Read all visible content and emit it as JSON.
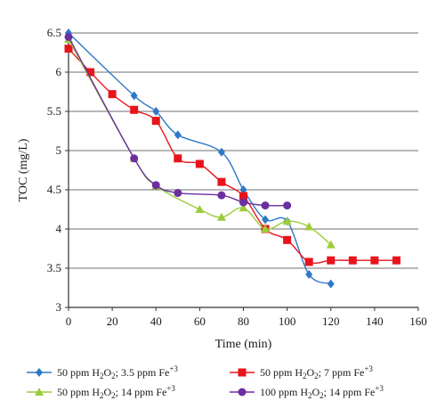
{
  "chart_data": {
    "type": "line",
    "xlabel": "Time (min)",
    "ylabel": "TOC (mg/L)",
    "xlim": [
      0,
      160
    ],
    "ylim": [
      3,
      6.5
    ],
    "x_ticks": [
      "0",
      "20",
      "40",
      "60",
      "80",
      "100",
      "120",
      "140",
      "160"
    ],
    "y_ticks": [
      "3",
      "3.5",
      "4",
      "4.5",
      "5",
      "5.5",
      "6",
      "6.5"
    ],
    "grid": "horizontal",
    "legend_position": "bottom",
    "series": [
      {
        "name": "50 ppm H2O2; 3.5 ppm Fe+3",
        "label_parts": {
          "pre": "50 ppm H",
          "s1": "2",
          "mid": "O",
          "s2": "2",
          "post": "; 3.5 ppm Fe",
          "sup": "+3"
        },
        "color": "#2e78c7",
        "marker": "diamond",
        "x": [
          0,
          30,
          40,
          50,
          70,
          80,
          90,
          100,
          110,
          120
        ],
        "y": [
          6.5,
          5.7,
          5.5,
          5.2,
          4.98,
          4.5,
          4.12,
          4.1,
          3.42,
          3.3
        ]
      },
      {
        "name": "50 ppm H2O2; 7 ppm Fe+3",
        "label_parts": {
          "pre": "50 ppm H",
          "s1": "2",
          "mid": "O",
          "s2": "2",
          "post": "; 7 ppm Fe",
          "sup": "+3"
        },
        "color": "#e8141b",
        "marker": "square",
        "x": [
          0,
          10,
          20,
          30,
          40,
          50,
          60,
          70,
          80,
          90,
          100,
          110,
          120,
          130,
          140,
          150
        ],
        "y": [
          6.3,
          6.0,
          5.72,
          5.52,
          5.38,
          4.9,
          4.83,
          4.6,
          4.42,
          4.0,
          3.86,
          3.58,
          3.6,
          3.6,
          3.6,
          3.6
        ]
      },
      {
        "name": "50 ppm H2O2; 14 ppm Fe+3",
        "label_parts": {
          "pre": "50 ppm H",
          "s1": "2",
          "mid": "O",
          "s2": "2",
          "post": "; 14 ppm Fe",
          "sup": "+3"
        },
        "color": "#9ccc3a",
        "marker": "triangle",
        "x": [
          0,
          30,
          40,
          60,
          70,
          80,
          90,
          100,
          110,
          120
        ],
        "y": [
          6.42,
          4.9,
          4.55,
          4.25,
          4.15,
          4.27,
          4.0,
          4.1,
          4.03,
          3.8
        ]
      },
      {
        "name": "100 ppm H2O2; 14 ppm Fe+3",
        "label_parts": {
          "pre": "100 ppm H",
          "s1": "2",
          "mid": "O",
          "s2": "2",
          "post": "; 14 ppm Fe",
          "sup": "+3"
        },
        "color": "#6b2fa0",
        "marker": "circle",
        "x": [
          0,
          30,
          40,
          50,
          70,
          80,
          90,
          100
        ],
        "y": [
          6.45,
          4.9,
          4.56,
          4.46,
          4.43,
          4.34,
          4.3,
          4.3
        ]
      }
    ]
  }
}
